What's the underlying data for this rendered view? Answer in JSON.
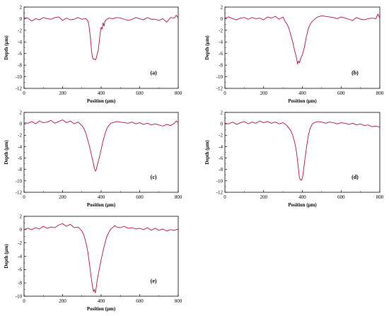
{
  "chart_data": [
    {
      "type": "line",
      "panel_label": "(a)",
      "xlabel": "Position (μm)",
      "ylabel": "Depth (μm)",
      "xlim": [
        0,
        800
      ],
      "ylim": [
        -12,
        2
      ],
      "xticks": [
        0,
        200,
        400,
        600,
        800
      ],
      "yticks": [
        2,
        0,
        -2,
        -4,
        -6,
        -8,
        -10,
        -12
      ],
      "series": [
        {
          "color": "#b0103a",
          "x": [
            0,
            20,
            40,
            60,
            80,
            100,
            120,
            140,
            160,
            180,
            200,
            220,
            240,
            260,
            280,
            300,
            320,
            330,
            335,
            340,
            345,
            350,
            355,
            360,
            365,
            370,
            375,
            380,
            385,
            390,
            395,
            400,
            405,
            410,
            415,
            420,
            430,
            440,
            460,
            480,
            500,
            520,
            540,
            560,
            580,
            600,
            620,
            640,
            660,
            680,
            700,
            720,
            740,
            760,
            780,
            790,
            800
          ],
          "y": [
            0.2,
            0.1,
            -0.4,
            0.0,
            -0.2,
            0.2,
            0.0,
            -0.1,
            0.2,
            0.3,
            -0.3,
            0.1,
            -0.2,
            -0.1,
            0.2,
            -0.1,
            0.0,
            -0.3,
            -0.8,
            -2.0,
            -3.5,
            -5.5,
            -6.7,
            -7.0,
            -6.9,
            -7.1,
            -6.8,
            -6.0,
            -5.5,
            -4.0,
            -2.5,
            -1.5,
            -1.8,
            -0.7,
            -1.3,
            -0.4,
            -0.1,
            0.1,
            0.0,
            0.2,
            0.1,
            -0.1,
            -0.3,
            -0.1,
            0.2,
            0.0,
            -0.2,
            0.2,
            -0.1,
            -0.1,
            -0.3,
            0.0,
            -0.6,
            0.2,
            0.1,
            0.6,
            0.1
          ]
        }
      ]
    },
    {
      "type": "line",
      "panel_label": "(b)",
      "xlabel": "Position (μm)",
      "ylabel": "Depth (μm)",
      "xlim": [
        0,
        800
      ],
      "ylim": [
        -12,
        2
      ],
      "xticks": [
        0,
        200,
        400,
        600,
        800
      ],
      "yticks": [
        2,
        0,
        -2,
        -4,
        -6,
        -8,
        -10,
        -12
      ],
      "series": [
        {
          "color": "#b0103a",
          "x": [
            0,
            20,
            40,
            60,
            80,
            100,
            120,
            140,
            160,
            180,
            200,
            220,
            240,
            260,
            280,
            300,
            310,
            320,
            330,
            340,
            350,
            360,
            370,
            375,
            380,
            385,
            390,
            400,
            410,
            420,
            430,
            440,
            450,
            460,
            470,
            480,
            500,
            520,
            540,
            560,
            580,
            600,
            620,
            640,
            660,
            680,
            700,
            720,
            740,
            760,
            780,
            790,
            800
          ],
          "y": [
            0.1,
            0.3,
            0.0,
            -0.2,
            0.1,
            0.2,
            -0.1,
            0.2,
            0.0,
            0.1,
            -0.2,
            0.3,
            0.1,
            0.4,
            -0.1,
            0.3,
            -0.4,
            -0.9,
            -1.6,
            -2.8,
            -4.0,
            -5.5,
            -6.8,
            -7.8,
            -7.3,
            -7.6,
            -7.0,
            -6.2,
            -5.0,
            -3.2,
            -1.8,
            -1.0,
            -0.5,
            -0.2,
            0.1,
            0.3,
            0.5,
            0.4,
            0.3,
            0.2,
            0.0,
            0.3,
            0.1,
            -0.1,
            -0.3,
            0.2,
            -0.1,
            -0.2,
            0.0,
            0.1,
            0.0,
            0.8,
            0.1
          ]
        }
      ]
    },
    {
      "type": "line",
      "panel_label": "(c)",
      "xlabel": "Position (μm)",
      "ylabel": "Depth (μm)",
      "xlim": [
        0,
        800
      ],
      "ylim": [
        -12,
        2
      ],
      "xticks": [
        0,
        200,
        400,
        600,
        800
      ],
      "yticks": [
        2,
        0,
        -2,
        -4,
        -6,
        -8,
        -10,
        -12
      ],
      "series": [
        {
          "color": "#b0103a",
          "x": [
            0,
            20,
            40,
            60,
            80,
            100,
            120,
            140,
            160,
            180,
            200,
            220,
            240,
            260,
            280,
            300,
            310,
            320,
            330,
            340,
            350,
            360,
            365,
            370,
            375,
            380,
            390,
            400,
            410,
            420,
            430,
            440,
            450,
            460,
            480,
            500,
            520,
            540,
            560,
            580,
            600,
            620,
            640,
            660,
            680,
            700,
            720,
            740,
            760,
            780,
            790,
            800
          ],
          "y": [
            0.2,
            0.1,
            0.4,
            0.0,
            0.5,
            0.2,
            0.3,
            0.6,
            0.1,
            0.4,
            0.7,
            0.2,
            0.5,
            0.0,
            0.3,
            -0.3,
            -0.8,
            -1.6,
            -2.8,
            -4.0,
            -5.5,
            -7.0,
            -7.8,
            -8.3,
            -8.0,
            -7.2,
            -6.0,
            -4.5,
            -3.0,
            -1.8,
            -0.8,
            -0.3,
            0.1,
            0.2,
            0.4,
            0.3,
            0.2,
            0.1,
            0.3,
            0.0,
            0.2,
            -0.1,
            0.1,
            -0.2,
            0.0,
            -0.2,
            -0.4,
            -0.1,
            -0.3,
            0.1,
            0.5,
            0.2
          ]
        }
      ]
    },
    {
      "type": "line",
      "panel_label": "(d)",
      "xlabel": "Position (μm)",
      "ylabel": "Depth (μm)",
      "xlim": [
        0,
        800
      ],
      "ylim": [
        -12,
        2
      ],
      "xticks": [
        0,
        200,
        400,
        600,
        800
      ],
      "yticks": [
        2,
        0,
        -2,
        -4,
        -6,
        -8,
        -10,
        -12
      ],
      "series": [
        {
          "color": "#b0103a",
          "x": [
            0,
            20,
            40,
            60,
            80,
            100,
            120,
            140,
            160,
            180,
            200,
            220,
            240,
            260,
            280,
            300,
            320,
            340,
            350,
            360,
            370,
            375,
            380,
            385,
            390,
            395,
            400,
            405,
            410,
            420,
            430,
            440,
            450,
            460,
            480,
            500,
            520,
            540,
            560,
            580,
            600,
            620,
            640,
            660,
            680,
            700,
            720,
            740,
            760,
            780,
            800
          ],
          "y": [
            0.1,
            0.0,
            0.3,
            -0.1,
            0.2,
            0.4,
            0.0,
            0.3,
            0.1,
            0.5,
            0.2,
            0.4,
            0.1,
            0.3,
            0.0,
            0.2,
            -0.3,
            -1.2,
            -2.0,
            -3.2,
            -5.0,
            -6.5,
            -8.0,
            -9.5,
            -9.8,
            -9.9,
            -9.5,
            -8.5,
            -7.0,
            -4.5,
            -2.2,
            -0.8,
            -0.1,
            0.2,
            0.4,
            0.3,
            0.1,
            0.3,
            0.2,
            0.0,
            0.2,
            0.1,
            -0.1,
            0.1,
            -0.2,
            0.0,
            -0.3,
            -0.2,
            -0.5,
            -0.4,
            -0.6
          ]
        }
      ]
    },
    {
      "type": "line",
      "panel_label": "(e)",
      "xlabel": "Position (μm)",
      "ylabel": "Depth (μm)",
      "xlim": [
        0,
        800
      ],
      "ylim": [
        -10,
        2
      ],
      "xticks": [
        0,
        200,
        400,
        600,
        800
      ],
      "yticks": [
        2,
        0,
        -2,
        -4,
        -6,
        -8,
        -10
      ],
      "series": [
        {
          "color": "#b0103a",
          "x": [
            0,
            20,
            40,
            60,
            80,
            100,
            120,
            140,
            160,
            180,
            200,
            220,
            240,
            260,
            280,
            300,
            310,
            320,
            330,
            340,
            345,
            350,
            355,
            360,
            365,
            370,
            375,
            380,
            390,
            400,
            410,
            420,
            430,
            440,
            450,
            460,
            470,
            480,
            500,
            520,
            540,
            560,
            580,
            600,
            620,
            640,
            660,
            680,
            700,
            720,
            740,
            760,
            780,
            800
          ],
          "y": [
            0.0,
            0.2,
            0.0,
            0.3,
            0.1,
            0.5,
            0.2,
            0.4,
            0.3,
            0.7,
            0.9,
            0.5,
            0.8,
            0.3,
            0.4,
            -0.2,
            -0.8,
            -1.8,
            -3.2,
            -5.2,
            -6.5,
            -7.5,
            -8.5,
            -9.3,
            -9.0,
            -9.5,
            -8.6,
            -7.5,
            -6.0,
            -4.5,
            -3.2,
            -2.0,
            -1.0,
            -0.4,
            0.1,
            0.3,
            0.6,
            0.4,
            0.3,
            0.5,
            0.2,
            0.3,
            0.1,
            0.2,
            0.0,
            0.3,
            -0.1,
            0.2,
            -0.1,
            0.1,
            -0.2,
            0.0,
            -0.1,
            0.1
          ]
        }
      ]
    }
  ]
}
